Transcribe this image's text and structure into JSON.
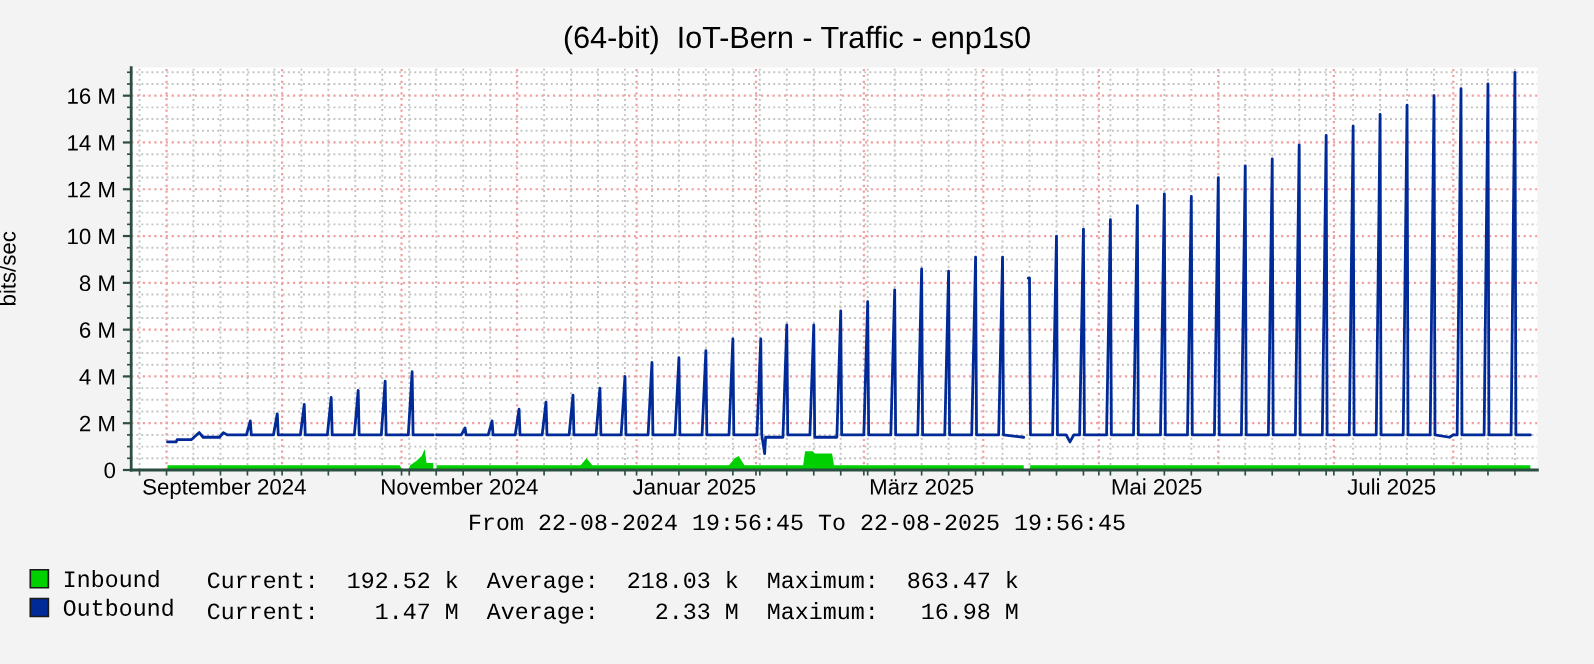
{
  "chart_data": {
    "type": "line",
    "title": "(64-bit)  IoT-Bern - Traffic - enp1s0",
    "ylabel": "bits/sec",
    "xlim": [
      "2024-08-22T19:56",
      "2025-08-22T19:56"
    ],
    "xticks": [
      {
        "value": "2024-08-25",
        "label": null
      },
      {
        "value": "2024-09-01",
        "label": null
      },
      {
        "value": "2024-09-08",
        "label": null
      },
      {
        "value": "2024-09-15",
        "label": null
      },
      {
        "value": "2024-09-16",
        "label": "September 2024"
      },
      {
        "value": "2024-09-22",
        "label": null
      },
      {
        "value": "2024-09-29",
        "label": null
      },
      {
        "value": "2024-10-01",
        "label": null
      },
      {
        "value": "2024-10-06",
        "label": null
      },
      {
        "value": "2024-10-13",
        "label": null
      },
      {
        "value": "2024-10-20",
        "label": null
      },
      {
        "value": "2024-10-27",
        "label": null
      },
      {
        "value": "2024-11-01",
        "label": null
      },
      {
        "value": "2024-11-03",
        "label": null
      },
      {
        "value": "2024-11-10",
        "label": null
      },
      {
        "value": "2024-11-16",
        "label": "November 2024"
      },
      {
        "value": "2024-11-17",
        "label": null
      },
      {
        "value": "2024-11-24",
        "label": null
      },
      {
        "value": "2024-12-01",
        "label": null
      },
      {
        "value": "2024-12-08",
        "label": null
      },
      {
        "value": "2024-12-15",
        "label": null
      },
      {
        "value": "2024-12-22",
        "label": null
      },
      {
        "value": "2024-12-29",
        "label": null
      },
      {
        "value": "2025-01-01",
        "label": null
      },
      {
        "value": "2025-01-05",
        "label": null
      },
      {
        "value": "2025-01-12",
        "label": null
      },
      {
        "value": "2025-01-16",
        "label": "Januar 2025"
      },
      {
        "value": "2025-01-19",
        "label": null
      },
      {
        "value": "2025-01-26",
        "label": null
      },
      {
        "value": "2025-02-01",
        "label": null
      },
      {
        "value": "2025-02-02",
        "label": null
      },
      {
        "value": "2025-02-09",
        "label": null
      },
      {
        "value": "2025-02-16",
        "label": null
      },
      {
        "value": "2025-02-23",
        "label": null
      },
      {
        "value": "2025-03-01",
        "label": null
      },
      {
        "value": "2025-03-02",
        "label": null
      },
      {
        "value": "2025-03-09",
        "label": null
      },
      {
        "value": "2025-03-16",
        "label": null
      },
      {
        "value": "2025-03-16",
        "label": "März 2025"
      },
      {
        "value": "2025-03-23",
        "label": null
      },
      {
        "value": "2025-03-30",
        "label": null
      },
      {
        "value": "2025-04-01",
        "label": null
      },
      {
        "value": "2025-04-06",
        "label": null
      },
      {
        "value": "2025-04-13",
        "label": null
      },
      {
        "value": "2025-04-20",
        "label": null
      },
      {
        "value": "2025-04-27",
        "label": null
      },
      {
        "value": "2025-05-01",
        "label": null
      },
      {
        "value": "2025-05-04",
        "label": null
      },
      {
        "value": "2025-05-11",
        "label": null
      },
      {
        "value": "2025-05-16",
        "label": "Mai 2025"
      },
      {
        "value": "2025-05-18",
        "label": null
      },
      {
        "value": "2025-05-25",
        "label": null
      },
      {
        "value": "2025-06-01",
        "label": null
      },
      {
        "value": "2025-06-08",
        "label": null
      },
      {
        "value": "2025-06-15",
        "label": null
      },
      {
        "value": "2025-06-22",
        "label": null
      },
      {
        "value": "2025-06-29",
        "label": null
      },
      {
        "value": "2025-07-01",
        "label": null
      },
      {
        "value": "2025-07-06",
        "label": null
      },
      {
        "value": "2025-07-13",
        "label": null
      },
      {
        "value": "2025-07-16",
        "label": "Juli 2025"
      },
      {
        "value": "2025-07-20",
        "label": null
      },
      {
        "value": "2025-07-27",
        "label": null
      },
      {
        "value": "2025-08-01",
        "label": null
      },
      {
        "value": "2025-08-03",
        "label": null
      },
      {
        "value": "2025-08-10",
        "label": null
      },
      {
        "value": "2025-08-17",
        "label": null
      }
    ],
    "ylim": [
      0,
      17.2
    ],
    "yticks": [
      0,
      {
        "value": 0.5,
        "label": null
      },
      {
        "value": 1,
        "label": null
      },
      {
        "value": 1.5,
        "label": null
      },
      {
        "value": 2,
        "label": "2 M"
      },
      {
        "value": 2.5,
        "label": null
      },
      {
        "value": 3,
        "label": null
      },
      {
        "value": 3.5,
        "label": null
      },
      {
        "value": 4,
        "label": "4 M"
      },
      {
        "value": 4.5,
        "label": null
      },
      {
        "value": 5,
        "label": null
      },
      {
        "value": 5.5,
        "label": null
      },
      {
        "value": 6,
        "label": "6 M"
      },
      {
        "value": 6.5,
        "label": null
      },
      {
        "value": 7,
        "label": null
      },
      {
        "value": 7.5,
        "label": null
      },
      {
        "value": 8,
        "label": "8 M"
      },
      {
        "value": 8.5,
        "label": null
      },
      {
        "value": 9,
        "label": null
      },
      {
        "value": 9.5,
        "label": null
      },
      {
        "value": 10,
        "label": "10 M"
      },
      {
        "value": 10.5,
        "label": null
      },
      {
        "value": 11,
        "label": null
      },
      {
        "value": 11.5,
        "label": null
      },
      {
        "value": 12,
        "label": "12 M"
      },
      {
        "value": 12.5,
        "label": null
      },
      {
        "value": 13,
        "label": null
      },
      {
        "value": 13.5,
        "label": null
      },
      {
        "value": 14,
        "label": "14 M"
      },
      {
        "value": 14.5,
        "label": null
      },
      {
        "value": 15,
        "label": null
      },
      {
        "value": 15.5,
        "label": null
      },
      {
        "value": 16,
        "label": "16 M"
      },
      {
        "value": 16.5,
        "label": null
      },
      {
        "value": 17,
        "label": null
      }
    ],
    "grid": true,
    "legend": "bottom left",
    "annotations": [
      "From 22-08-2024 19:56:45 To 22-08-2025 19:56:45",
      "Current:  192.52 k  Average:  218.03 k  Maximum:  863.47 k",
      "Current:    1.47 M  Average:    2.33 M  Maximum:   16.98 M"
    ],
    "series": [
      {
        "name": "Inbound",
        "type": "area",
        "color": "#00cf00",
        "x": [
          "2024-09-01T06:00",
          "2024-10-31T12:00",
          "2024-11-01T06:00",
          "2024-11-02T18:00",
          "2024-11-03T06:00",
          "2024-11-04T22:00",
          "2024-11-06T06:00",
          "2024-11-07T00:00",
          "2024-11-07T12:00",
          "2024-11-09T06:00",
          "2024-11-09T16:00",
          "2024-11-10T02:00",
          "2024-12-17T12:00",
          "2024-12-19T00:00",
          "2024-12-20T12:00",
          "2025-01-25T00:00",
          "2025-01-26T12:00",
          "2025-01-27T12:00",
          "2025-01-29T00:00",
          "2025-02-13T06:00",
          "2025-02-13T18:00",
          "2025-02-15T18:00",
          "2025-02-16T06:00",
          "2025-02-20T18:00",
          "2025-02-21T06:00",
          "2025-04-11T12:00",
          "2025-04-12T06:00",
          "2025-04-13T04:00",
          "2025-08-21T00:00"
        ],
        "values": [
          0.2,
          0.2,
          0.0,
          0.0,
          0.2,
          0.4,
          0.6,
          0.9,
          0.3,
          0.3,
          null,
          0.2,
          0.2,
          0.5,
          0.2,
          0.2,
          0.5,
          0.6,
          0.2,
          0.2,
          0.8,
          0.8,
          0.7,
          0.7,
          0.2,
          0.2,
          null,
          0.2,
          0.2
        ]
      },
      {
        "name": "Outbound",
        "color": "#002a97",
        "x": [
          "2024-09-01T06:00",
          "2024-09-03T12:00",
          "2024-09-03T18:00",
          "2024-09-07T12:00",
          "2024-09-09T12:00",
          "2024-09-10T12:00",
          "2024-09-14T18:00",
          "2024-09-15T18:00",
          "2024-09-16T18:00",
          "2024-09-21T18:00",
          "2024-09-22T18:00",
          "2024-09-23T00:00",
          "2024-09-28T18:00",
          "2024-09-29T18:00",
          "2024-09-30T00:00",
          "2024-10-05T18:00",
          "2024-10-06T18:00",
          "2024-10-07T00:00",
          "2024-10-12T18:00",
          "2024-10-13T18:00",
          "2024-10-14T00:00",
          "2024-10-19T18:00",
          "2024-10-20T18:00",
          "2024-10-21T00:00",
          "2024-10-26T18:00",
          "2024-10-27T18:00",
          "2024-10-28T00:00",
          "2024-11-02T18:00",
          "2024-11-03T18:00",
          "2024-11-04T00:00",
          "2024-11-09T06:00",
          "2024-11-09T16:00",
          "2024-11-10T02:00",
          "2024-11-16T12:00",
          "2024-11-17T12:00",
          "2024-11-17T18:00",
          "2024-11-23T12:00",
          "2024-11-24T12:00",
          "2024-11-24T18:00",
          "2024-11-30T12:00",
          "2024-12-01T12:00",
          "2024-12-01T18:00",
          "2024-12-07T12:00",
          "2024-12-08T12:00",
          "2024-12-08T18:00",
          "2024-12-14T12:00",
          "2024-12-15T12:00",
          "2024-12-15T18:00",
          "2024-12-21T12:00",
          "2024-12-22T12:00",
          "2024-12-22T18:00",
          "2024-12-28T00:00",
          "2024-12-29T00:00",
          "2024-12-29T06:00",
          "2025-01-04T00:00",
          "2025-01-05T00:00",
          "2025-01-05T06:00",
          "2025-01-11T00:00",
          "2025-01-12T00:00",
          "2025-01-12T06:00",
          "2025-01-18T00:00",
          "2025-01-19T00:00",
          "2025-01-19T06:00",
          "2025-01-25T00:00",
          "2025-01-26T00:00",
          "2025-01-26T06:00",
          "2025-02-01T06:00",
          "2025-02-02T06:00",
          "2025-02-02T12:00",
          "2025-02-03T06:00",
          "2025-02-03T12:00",
          "2025-02-08T00:00",
          "2025-02-09T00:00",
          "2025-02-09T06:00",
          "2025-02-15T00:00",
          "2025-02-16T00:00",
          "2025-02-16T06:00",
          "2025-02-22T00:00",
          "2025-02-23T00:00",
          "2025-02-23T06:00",
          "2025-03-01T00:00",
          "2025-03-02T00:00",
          "2025-03-02T06:00",
          "2025-03-08T00:00",
          "2025-03-09T00:00",
          "2025-03-09T06:00",
          "2025-03-15T00:00",
          "2025-03-16T00:00",
          "2025-03-16T06:00",
          "2025-03-22T00:00",
          "2025-03-23T00:00",
          "2025-03-23T06:00",
          "2025-03-29T00:00",
          "2025-03-30T00:00",
          "2025-03-30T06:00",
          "2025-04-05T00:00",
          "2025-04-06T00:00",
          "2025-04-06T06:00",
          "2025-04-11T12:00",
          "2025-04-12T00:00",
          "2025-04-12T16:00",
          "2025-04-13T00:00",
          "2025-04-13T06:00",
          "2025-04-19T00:00",
          "2025-04-20T00:00",
          "2025-04-20T06:00",
          "2025-04-22T12:00",
          "2025-04-23T12:00",
          "2025-04-24T12:00",
          "2025-04-26T00:00",
          "2025-04-27T00:00",
          "2025-04-27T06:00",
          "2025-05-03T00:00",
          "2025-05-04T00:00",
          "2025-05-04T06:00",
          "2025-05-10T00:00",
          "2025-05-11T00:00",
          "2025-05-11T06:00",
          "2025-05-17T00:00",
          "2025-05-18T00:00",
          "2025-05-18T06:00",
          "2025-05-24T00:00",
          "2025-05-25T00:00",
          "2025-05-25T06:00",
          "2025-05-31T00:00",
          "2025-06-01T00:00",
          "2025-06-01T06:00",
          "2025-06-07T00:00",
          "2025-06-08T00:00",
          "2025-06-08T06:00",
          "2025-06-14T00:00",
          "2025-06-15T00:00",
          "2025-06-15T06:00",
          "2025-06-21T00:00",
          "2025-06-22T00:00",
          "2025-06-22T06:00",
          "2025-06-28T00:00",
          "2025-06-29T00:00",
          "2025-06-29T06:00",
          "2025-07-05T00:00",
          "2025-07-06T00:00",
          "2025-07-06T06:00",
          "2025-07-12T00:00",
          "2025-07-13T00:00",
          "2025-07-13T06:00",
          "2025-07-19T00:00",
          "2025-07-20T00:00",
          "2025-07-20T06:00",
          "2025-07-26T00:00",
          "2025-07-27T00:00",
          "2025-07-27T06:00",
          "2025-07-31T00:00",
          "2025-08-01T00:00",
          "2025-08-02T00:00",
          "2025-08-03T00:00",
          "2025-08-03T06:00",
          "2025-08-09T00:00",
          "2025-08-10T00:00",
          "2025-08-10T06:00",
          "2025-08-16T00:00",
          "2025-08-17T00:00",
          "2025-08-17T06:00",
          "2025-08-21T00:00"
        ],
        "values": [
          1.2,
          1.2,
          1.3,
          1.3,
          1.6,
          1.4,
          1.4,
          1.6,
          1.5,
          1.5,
          2.1,
          1.5,
          1.5,
          2.4,
          1.5,
          1.5,
          2.8,
          1.5,
          1.5,
          3.1,
          1.5,
          1.5,
          3.4,
          1.5,
          1.5,
          3.8,
          1.5,
          1.5,
          4.2,
          1.5,
          1.5,
          null,
          1.5,
          1.5,
          1.8,
          1.5,
          1.5,
          2.1,
          1.5,
          1.5,
          2.6,
          1.5,
          1.5,
          2.9,
          1.5,
          1.5,
          3.2,
          1.5,
          1.5,
          3.5,
          1.5,
          1.5,
          4.0,
          1.5,
          1.5,
          4.6,
          1.5,
          1.5,
          4.8,
          1.5,
          1.5,
          5.1,
          1.5,
          1.5,
          5.6,
          1.5,
          1.5,
          5.6,
          1.5,
          0.7,
          1.4,
          1.4,
          6.2,
          1.5,
          1.5,
          6.2,
          1.4,
          1.4,
          6.8,
          1.5,
          1.5,
          7.2,
          1.5,
          1.5,
          7.7,
          1.5,
          1.5,
          8.6,
          1.5,
          1.5,
          8.5,
          1.5,
          1.5,
          9.1,
          1.5,
          1.5,
          9.1,
          1.5,
          1.4,
          null,
          8.2,
          8.2,
          1.5,
          1.5,
          10.0,
          1.5,
          1.5,
          1.2,
          1.5,
          1.5,
          10.3,
          1.5,
          1.5,
          10.7,
          1.5,
          1.5,
          11.3,
          1.5,
          1.5,
          11.8,
          1.5,
          1.5,
          11.7,
          1.5,
          1.5,
          12.5,
          1.5,
          1.5,
          13.0,
          1.5,
          1.5,
          13.3,
          1.5,
          1.5,
          13.9,
          1.5,
          1.5,
          14.3,
          1.5,
          1.5,
          14.7,
          1.5,
          1.5,
          15.2,
          1.5,
          1.5,
          15.6,
          1.5,
          1.5,
          16.0,
          1.5,
          1.4,
          1.5,
          1.5,
          16.3,
          1.5,
          1.5,
          16.5,
          1.5,
          1.5,
          17.0,
          1.5,
          1.5
        ]
      }
    ]
  }
}
